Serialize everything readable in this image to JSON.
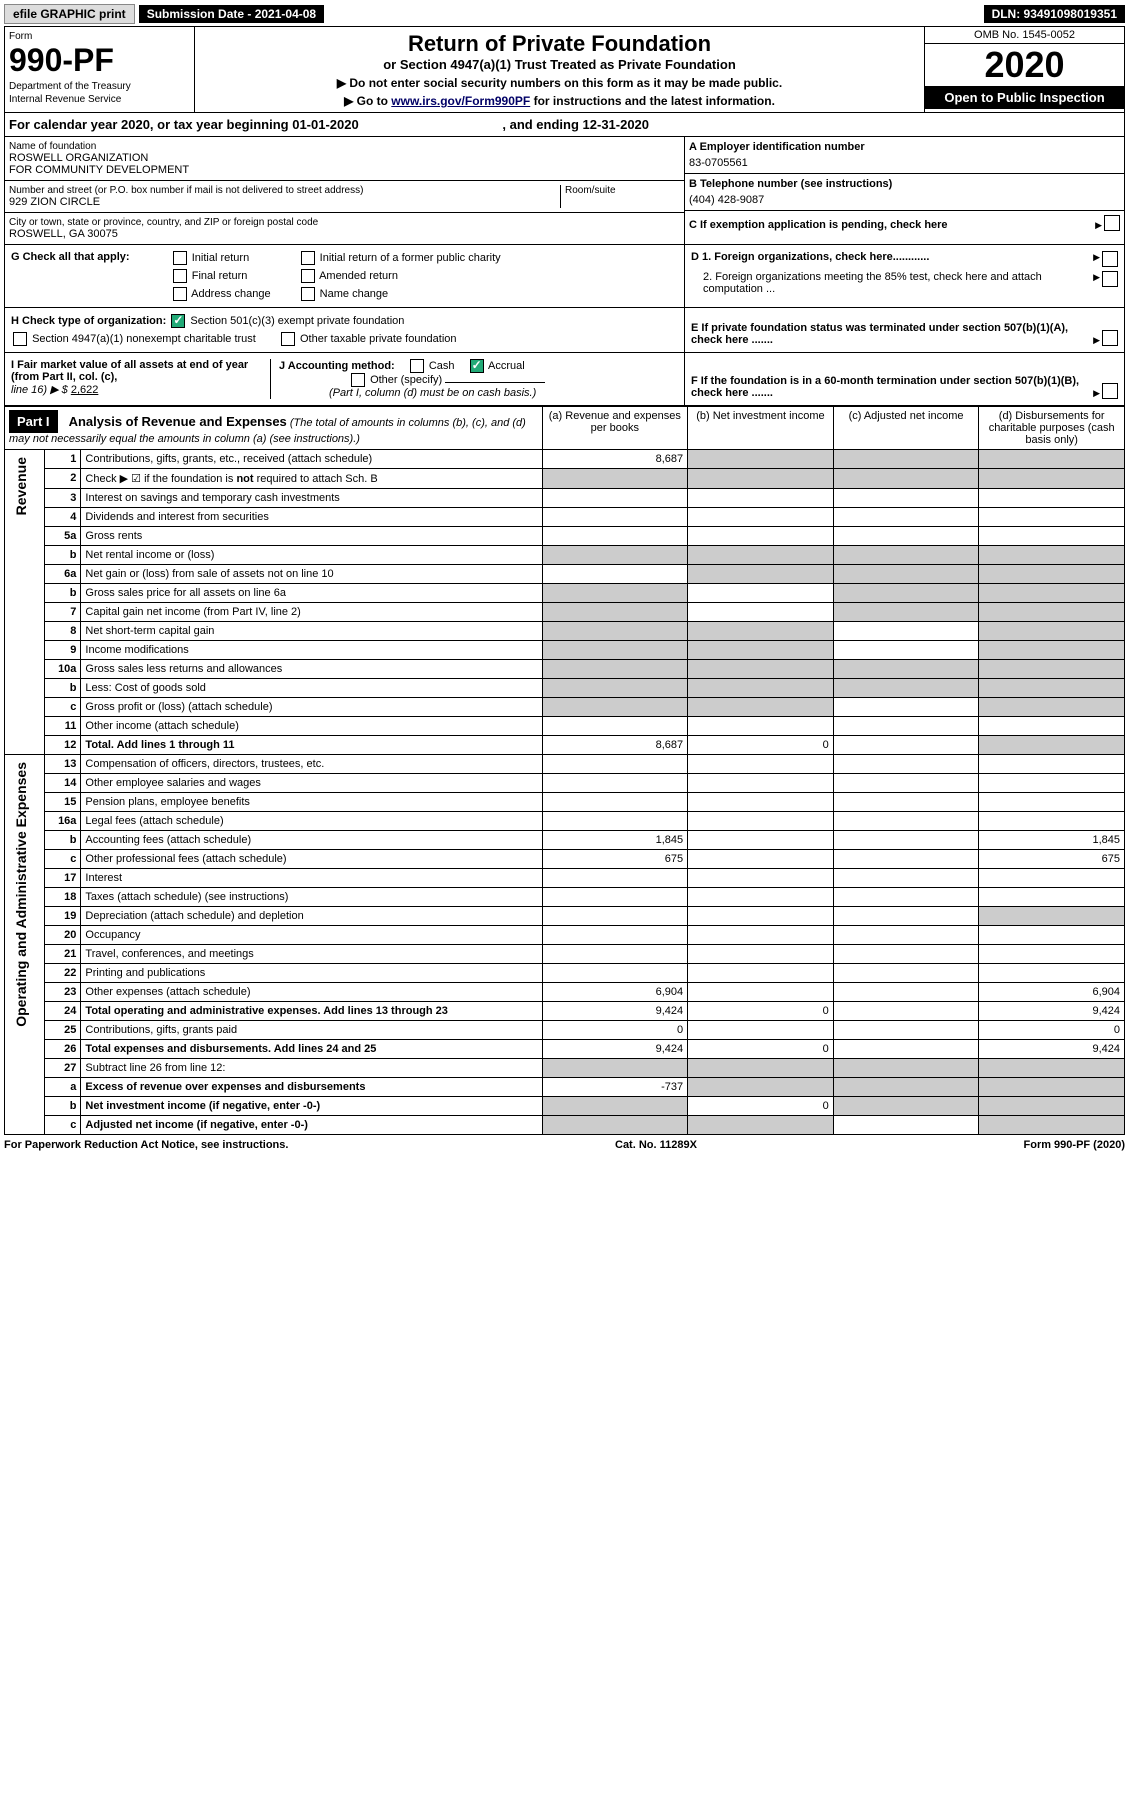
{
  "topbar": {
    "efile": "efile GRAPHIC print",
    "subdate_label": "Submission Date - 2021-04-08",
    "dln": "DLN: 93491098019351"
  },
  "header": {
    "form_label": "Form",
    "form_num": "990-PF",
    "dept1": "Department of the Treasury",
    "dept2": "Internal Revenue Service",
    "title": "Return of Private Foundation",
    "subtitle": "or Section 4947(a)(1) Trust Treated as Private Foundation",
    "instr1": "▶ Do not enter social security numbers on this form as it may be made public.",
    "instr2_pre": "▶ Go to ",
    "instr2_link": "www.irs.gov/Form990PF",
    "instr2_post": " for instructions and the latest information.",
    "omb": "OMB No. 1545-0052",
    "year": "2020",
    "open": "Open to Public Inspection"
  },
  "calyear": "For calendar year 2020, or tax year beginning 01-01-2020",
  "calyear_end": ", and ending 12-31-2020",
  "info": {
    "name_lbl": "Name of foundation",
    "name1": "ROSWELL ORGANIZATION",
    "name2": "FOR COMMUNITY DEVELOPMENT",
    "addr_lbl": "Number and street (or P.O. box number if mail is not delivered to street address)",
    "addr": "929 ZION CIRCLE",
    "room_lbl": "Room/suite",
    "city_lbl": "City or town, state or province, country, and ZIP or foreign postal code",
    "city": "ROSWELL, GA  30075",
    "a_lbl": "A Employer identification number",
    "a_val": "83-0705561",
    "b_lbl": "B Telephone number (see instructions)",
    "b_val": "(404) 428-9087",
    "c_lbl": "C If exemption application is pending, check here",
    "d1_lbl": "D 1. Foreign organizations, check here............",
    "d2_lbl": "2. Foreign organizations meeting the 85% test, check here and attach computation ...",
    "e_lbl": "E  If private foundation status was terminated under section 507(b)(1)(A), check here .......",
    "f_lbl": "F  If the foundation is in a 60-month termination under section 507(b)(1)(B), check here ......."
  },
  "g": {
    "lbl": "G Check all that apply:",
    "opts": [
      "Initial return",
      "Final return",
      "Address change",
      "Initial return of a former public charity",
      "Amended return",
      "Name change"
    ]
  },
  "h": {
    "lbl": "H Check type of organization:",
    "opt1": "Section 501(c)(3) exempt private foundation",
    "opt2": "Section 4947(a)(1) nonexempt charitable trust",
    "opt3": "Other taxable private foundation"
  },
  "i": {
    "lbl": "I Fair market value of all assets at end of year (from Part II, col. (c),",
    "line16": "line 16) ▶ $ ",
    "val": "2,622"
  },
  "j": {
    "lbl": "J Accounting method:",
    "cash": "Cash",
    "accrual": "Accrual",
    "other": "Other (specify)",
    "note": "(Part I, column (d) must be on cash basis.)"
  },
  "part1": {
    "hdr": "Part I",
    "title": "Analysis of Revenue and Expenses",
    "title_note": " (The total of amounts in columns (b), (c), and (d) may not necessarily equal the amounts in column (a) (see instructions).)",
    "cols": {
      "a": "(a)    Revenue and expenses per books",
      "b": "(b)    Net investment income",
      "c": "(c)    Adjusted net income",
      "d": "(d)   Disbursements for charitable purposes (cash basis only)"
    }
  },
  "side_labels": {
    "revenue": "Revenue",
    "expenses": "Operating and Administrative Expenses"
  },
  "lines": [
    {
      "n": "1",
      "d": "Contributions, gifts, grants, etc., received (attach schedule)",
      "a": "8,687",
      "sb": true,
      "sc": true,
      "sd": true
    },
    {
      "n": "2",
      "d": "Check ▶ ☑ if the foundation is not required to attach Sch. B",
      "sa": true,
      "sb": true,
      "sc": true,
      "sd": true,
      "bold_not": true
    },
    {
      "n": "3",
      "d": "Interest on savings and temporary cash investments"
    },
    {
      "n": "4",
      "d": "Dividends and interest from securities"
    },
    {
      "n": "5a",
      "d": "Gross rents"
    },
    {
      "n": "b",
      "d": "Net rental income or (loss)",
      "sa": true,
      "sb": true,
      "sc": true,
      "sd": true,
      "inline": true
    },
    {
      "n": "6a",
      "d": "Net gain or (loss) from sale of assets not on line 10",
      "sb": true,
      "sc": true,
      "sd": true
    },
    {
      "n": "b",
      "d": "Gross sales price for all assets on line 6a",
      "sa": true,
      "sc": true,
      "sd": true,
      "inline": true
    },
    {
      "n": "7",
      "d": "Capital gain net income (from Part IV, line 2)",
      "sa": true,
      "sc": true,
      "sd": true
    },
    {
      "n": "8",
      "d": "Net short-term capital gain",
      "sa": true,
      "sb": true,
      "sd": true
    },
    {
      "n": "9",
      "d": "Income modifications",
      "sa": true,
      "sb": true,
      "sd": true
    },
    {
      "n": "10a",
      "d": "Gross sales less returns and allowances",
      "sa": true,
      "sb": true,
      "sc": true,
      "sd": true,
      "inline": true
    },
    {
      "n": "b",
      "d": "Less: Cost of goods sold",
      "sa": true,
      "sb": true,
      "sc": true,
      "sd": true,
      "inline": true
    },
    {
      "n": "c",
      "d": "Gross profit or (loss) (attach schedule)",
      "sa": true,
      "sb": true,
      "sd": true
    },
    {
      "n": "11",
      "d": "Other income (attach schedule)"
    },
    {
      "n": "12",
      "d": "Total. Add lines 1 through 11",
      "a": "8,687",
      "b": "0",
      "bold": true,
      "sd": true
    },
    {
      "n": "13",
      "d": "Compensation of officers, directors, trustees, etc."
    },
    {
      "n": "14",
      "d": "Other employee salaries and wages"
    },
    {
      "n": "15",
      "d": "Pension plans, employee benefits"
    },
    {
      "n": "16a",
      "d": "Legal fees (attach schedule)"
    },
    {
      "n": "b",
      "d": "Accounting fees (attach schedule)",
      "a": "1,845",
      "dv": "1,845"
    },
    {
      "n": "c",
      "d": "Other professional fees (attach schedule)",
      "a": "675",
      "dv": "675"
    },
    {
      "n": "17",
      "d": "Interest"
    },
    {
      "n": "18",
      "d": "Taxes (attach schedule) (see instructions)"
    },
    {
      "n": "19",
      "d": "Depreciation (attach schedule) and depletion",
      "sd": true
    },
    {
      "n": "20",
      "d": "Occupancy"
    },
    {
      "n": "21",
      "d": "Travel, conferences, and meetings"
    },
    {
      "n": "22",
      "d": "Printing and publications"
    },
    {
      "n": "23",
      "d": "Other expenses (attach schedule)",
      "a": "6,904",
      "dv": "6,904"
    },
    {
      "n": "24",
      "d": "Total operating and administrative expenses. Add lines 13 through 23",
      "a": "9,424",
      "b": "0",
      "dv": "9,424",
      "bold": true
    },
    {
      "n": "25",
      "d": "Contributions, gifts, grants paid",
      "a": "0",
      "dv": "0"
    },
    {
      "n": "26",
      "d": "Total expenses and disbursements. Add lines 24 and 25",
      "a": "9,424",
      "b": "0",
      "dv": "9,424",
      "bold": true
    },
    {
      "n": "27",
      "d": "Subtract line 26 from line 12:",
      "sa": true,
      "sb": true,
      "sc": true,
      "sd": true
    },
    {
      "n": "a",
      "d": "Excess of revenue over expenses and disbursements",
      "a": "-737",
      "bold": true,
      "sb": true,
      "sc": true,
      "sd": true
    },
    {
      "n": "b",
      "d": "Net investment income (if negative, enter -0-)",
      "b": "0",
      "bold": true,
      "sa": true,
      "sc": true,
      "sd": true
    },
    {
      "n": "c",
      "d": "Adjusted net income (if negative, enter -0-)",
      "bold": true,
      "sa": true,
      "sb": true,
      "sd": true
    }
  ],
  "footer": {
    "pra": "For Paperwork Reduction Act Notice, see instructions.",
    "cat": "Cat. No. 11289X",
    "form": "Form 990-PF (2020)"
  },
  "colors": {
    "black": "#000000",
    "white": "#ffffff",
    "shade": "#cccccc",
    "link": "#000066",
    "check": "#22aa77"
  }
}
